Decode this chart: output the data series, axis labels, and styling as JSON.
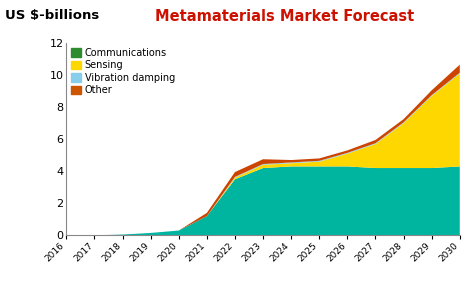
{
  "title": "Metamaterials Market Forecast",
  "ylabel_top": "US $-billions",
  "years": [
    2016,
    2017,
    2018,
    2019,
    2020,
    2021,
    2022,
    2023,
    2024,
    2025,
    2026,
    2027,
    2028,
    2029,
    2030
  ],
  "communications": [
    0.0,
    0.0,
    0.05,
    0.15,
    0.3,
    1.2,
    3.5,
    4.2,
    4.3,
    4.3,
    4.3,
    4.2,
    4.2,
    4.2,
    4.3
  ],
  "sensing": [
    0.0,
    0.0,
    0.0,
    0.0,
    0.0,
    0.0,
    0.1,
    0.2,
    0.2,
    0.3,
    0.8,
    1.5,
    2.8,
    4.5,
    5.8
  ],
  "vibration": [
    0.0,
    0.0,
    0.0,
    0.0,
    0.0,
    0.0,
    0.05,
    0.05,
    0.05,
    0.05,
    0.05,
    0.05,
    0.05,
    0.05,
    0.05
  ],
  "other": [
    0.0,
    0.0,
    0.0,
    0.0,
    0.0,
    0.2,
    0.3,
    0.3,
    0.15,
    0.15,
    0.15,
    0.2,
    0.2,
    0.3,
    0.5
  ],
  "colors": {
    "communications": "#00B5A0",
    "sensing": "#FFD700",
    "vibration": "#87CEEB",
    "other": "#CC4400"
  },
  "legend_colors": {
    "communications": "#2E8B2E",
    "sensing": "#FFD700",
    "vibration": "#87CEEB",
    "other": "#CC5500"
  },
  "ylim": [
    0,
    12
  ],
  "background_color": "#FFFFFF",
  "title_color": "#CC1100",
  "title_fontsize": 10.5,
  "label_fontsize": 9.5
}
